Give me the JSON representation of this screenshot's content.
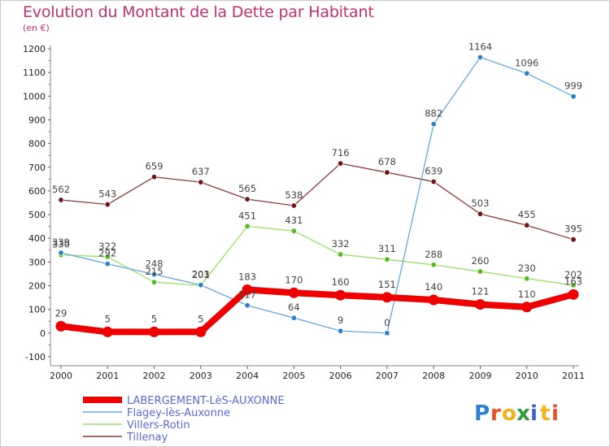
{
  "header": {
    "title": "Evolution du Montant de la Dette par Habitant",
    "unit": "(en €)"
  },
  "brand": {
    "logo_text": "Proxiti",
    "letter_colors": [
      "#2f7fd0",
      "#e8501f",
      "#f4b21a",
      "#2f9b3d",
      "#3a62c8",
      "#f4b21a",
      "#e8501f"
    ]
  },
  "chart_data": {
    "type": "line",
    "title": "Evolution du Montant de la Dette par Habitant",
    "ylabel": "(en €)",
    "xlabel": "",
    "ylim": [
      -100,
      1200
    ],
    "y_ticks": [
      -100,
      0,
      100,
      200,
      300,
      400,
      500,
      600,
      700,
      800,
      900,
      1000,
      1100,
      1200
    ],
    "categories": [
      "2000",
      "2001",
      "2002",
      "2003",
      "2004",
      "2005",
      "2006",
      "2007",
      "2008",
      "2009",
      "2010",
      "2011"
    ],
    "grid": false,
    "legend_position": "bottom-left",
    "series": [
      {
        "name": "Tillenay",
        "color": "#8b3a3a",
        "point_color": "#6e1515",
        "style": "thin",
        "values": [
          562,
          543,
          659,
          637,
          565,
          538,
          716,
          678,
          639,
          503,
          455,
          395
        ],
        "labels": [
          "562",
          "543",
          "659",
          "637",
          "565",
          "538",
          "716",
          "678",
          "639",
          "503",
          "455",
          "395"
        ]
      },
      {
        "name": "Villers-Rotin",
        "color": "#99e066",
        "point_color": "#55bb22",
        "style": "thin",
        "values": [
          330,
          322,
          215,
          201,
          451,
          431,
          332,
          311,
          288,
          260,
          230,
          202
        ],
        "labels": [
          "330",
          "322",
          "215",
          "201",
          "451",
          "431",
          "332",
          "311",
          "288",
          "260",
          "230",
          "202"
        ]
      },
      {
        "name": "Flagey-lès-Auxonne",
        "color": "#66a8dd",
        "point_color": "#2f7fc8",
        "style": "thin",
        "values": [
          339,
          292,
          248,
          203,
          117,
          64,
          9,
          0,
          882,
          1164,
          1096,
          999
        ],
        "labels": [
          "339",
          "292",
          "248",
          "203",
          "117",
          "64",
          "9",
          "0",
          "882",
          "1164",
          "1096",
          "999"
        ]
      },
      {
        "name": "LABERGEMENT-LèS-AUXONNE",
        "color": "#ee0000",
        "point_color": "#ee0000",
        "style": "thick",
        "values": [
          29,
          5,
          5,
          5,
          183,
          170,
          160,
          151,
          140,
          121,
          110,
          163
        ],
        "labels": [
          "29",
          "5",
          "5",
          "5",
          "183",
          "170",
          "160",
          "151",
          "140",
          "121",
          "110",
          "163"
        ]
      }
    ],
    "legend": [
      "LABERGEMENT-LèS-AUXONNE",
      "Flagey-lès-Auxonne",
      "Villers-Rotin",
      "Tillenay"
    ]
  }
}
